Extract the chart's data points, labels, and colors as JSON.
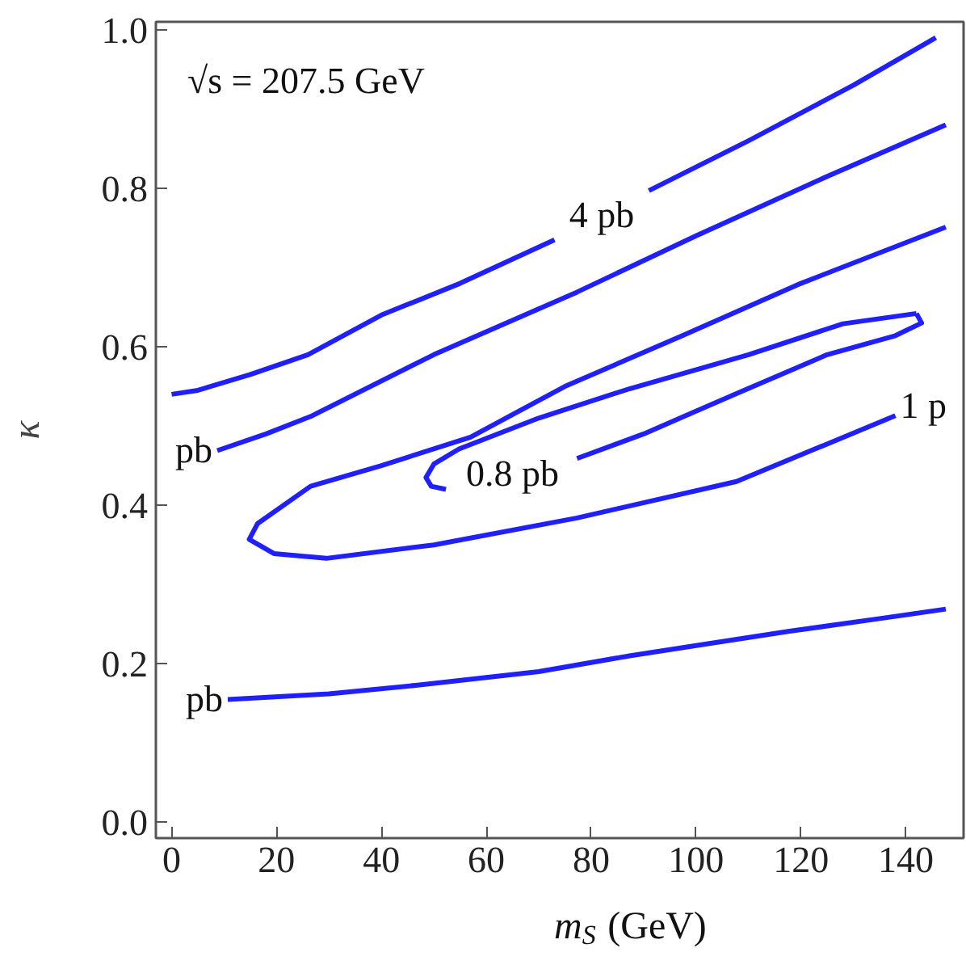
{
  "chart_data": {
    "type": "line",
    "xlabel": "m$_{S}$ (GeV)",
    "ylabel": "κ",
    "xlim": [
      -3,
      151
    ],
    "ylim": [
      -0.02,
      1.01
    ],
    "xticks": [
      0,
      20,
      40,
      60,
      80,
      100,
      120,
      140
    ],
    "yticks": [
      {
        "value": 0,
        "label": "0.0"
      },
      0.2,
      0.4,
      0.6,
      0.8,
      {
        "value": 1,
        "label": "1.0"
      }
    ],
    "grid": false,
    "marker": "none",
    "line_style": "solid",
    "series": [
      {
        "name": "4 pb",
        "color": "#1f1fff",
        "x": [
          0,
          5,
          15,
          26,
          40,
          55,
          73,
          82,
          91,
          110,
          130,
          145.7
        ],
        "values": [
          0.54,
          0.545,
          0.565,
          0.59,
          0.64,
          0.68,
          0.735,
          null,
          0.797,
          0.86,
          0.93,
          0.99
        ]
      },
      {
        "name": "pb",
        "color": "#1f1fff",
        "x": [
          8.7,
          18,
          26.5,
          50,
          77.3,
          100,
          125,
          147.6
        ],
        "values": [
          0.469,
          0.49,
          0.512,
          0.59,
          0.669,
          0.74,
          0.815,
          0.88
        ]
      },
      {
        "name": "1 p",
        "color": "#1f1fff",
        "x": [
          147.6,
          120,
          97.4,
          75,
          57,
          40,
          26.5,
          16.4,
          14.8,
          19.5,
          29.5,
          50,
          77.3,
          107.7,
          138
        ],
        "values": [
          0.751,
          0.68,
          0.614,
          0.55,
          0.486,
          0.45,
          0.424,
          0.377,
          0.357,
          0.339,
          0.333,
          0.35,
          0.384,
          0.43,
          0.513
        ]
      },
      {
        "name": "0.8 pb",
        "color": "#1f1fff",
        "x": [
          142,
          128,
          110,
          87.3,
          70,
          54.8,
          50,
          48.5,
          49.5,
          52.3,
          65,
          77.3,
          90,
          107.7,
          125,
          138,
          143,
          142
        ],
        "values": [
          0.642,
          0.629,
          0.59,
          0.547,
          0.51,
          0.471,
          0.452,
          0.435,
          0.424,
          0.42,
          null,
          0.459,
          0.49,
          0.541,
          0.59,
          0.614,
          0.63,
          0.642
        ]
      },
      {
        "name": "pb",
        "color": "#1f1fff",
        "x": [
          10.7,
          30,
          46.9,
          70,
          87.3,
          100,
          117.8,
          135,
          147.6
        ],
        "values": [
          0.155,
          0.162,
          0.173,
          0.19,
          0.21,
          0.223,
          0.241,
          0.257,
          0.269
        ]
      }
    ],
    "annotations": [
      "√s = 207.5 GeV"
    ]
  }
}
